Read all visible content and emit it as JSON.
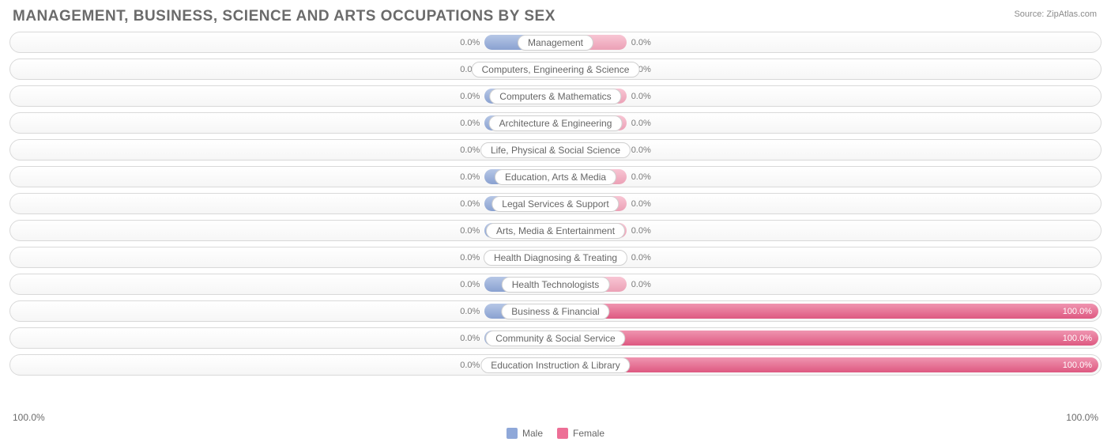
{
  "title": "MANAGEMENT, BUSINESS, SCIENCE AND ARTS OCCUPATIONS BY SEX",
  "source": "Source: ZipAtlas.com",
  "axis": {
    "left": "100.0%",
    "right": "100.0%"
  },
  "legend": {
    "male": {
      "label": "Male",
      "color": "#8fa8d9"
    },
    "female": {
      "label": "Female",
      "color": "#ed6f96"
    }
  },
  "colors": {
    "male_bar": "#8fa8d9",
    "female_bar_zero": "#f5a7bd",
    "female_bar_full": "#e75c86",
    "row_border": "#d9d9d9",
    "text_gray": "#7a7a7a"
  },
  "chart": {
    "type": "diverging-bar",
    "male_zero_bar_pct": 13.0,
    "female_zero_bar_pct": 13.0,
    "rows": [
      {
        "category": "Management",
        "male_pct": 0.0,
        "female_pct": 0.0,
        "male_label": "0.0%",
        "female_label": "0.0%"
      },
      {
        "category": "Computers, Engineering & Science",
        "male_pct": 0.0,
        "female_pct": 0.0,
        "male_label": "0.0%",
        "female_label": "0.0%"
      },
      {
        "category": "Computers & Mathematics",
        "male_pct": 0.0,
        "female_pct": 0.0,
        "male_label": "0.0%",
        "female_label": "0.0%"
      },
      {
        "category": "Architecture & Engineering",
        "male_pct": 0.0,
        "female_pct": 0.0,
        "male_label": "0.0%",
        "female_label": "0.0%"
      },
      {
        "category": "Life, Physical & Social Science",
        "male_pct": 0.0,
        "female_pct": 0.0,
        "male_label": "0.0%",
        "female_label": "0.0%"
      },
      {
        "category": "Education, Arts & Media",
        "male_pct": 0.0,
        "female_pct": 0.0,
        "male_label": "0.0%",
        "female_label": "0.0%"
      },
      {
        "category": "Legal Services & Support",
        "male_pct": 0.0,
        "female_pct": 0.0,
        "male_label": "0.0%",
        "female_label": "0.0%"
      },
      {
        "category": "Arts, Media & Entertainment",
        "male_pct": 0.0,
        "female_pct": 0.0,
        "male_label": "0.0%",
        "female_label": "0.0%"
      },
      {
        "category": "Health Diagnosing & Treating",
        "male_pct": 0.0,
        "female_pct": 0.0,
        "male_label": "0.0%",
        "female_label": "0.0%"
      },
      {
        "category": "Health Technologists",
        "male_pct": 0.0,
        "female_pct": 0.0,
        "male_label": "0.0%",
        "female_label": "0.0%"
      },
      {
        "category": "Business & Financial",
        "male_pct": 0.0,
        "female_pct": 100.0,
        "male_label": "0.0%",
        "female_label": "100.0%"
      },
      {
        "category": "Community & Social Service",
        "male_pct": 0.0,
        "female_pct": 100.0,
        "male_label": "0.0%",
        "female_label": "100.0%"
      },
      {
        "category": "Education Instruction & Library",
        "male_pct": 0.0,
        "female_pct": 100.0,
        "male_label": "0.0%",
        "female_label": "100.0%"
      }
    ]
  }
}
